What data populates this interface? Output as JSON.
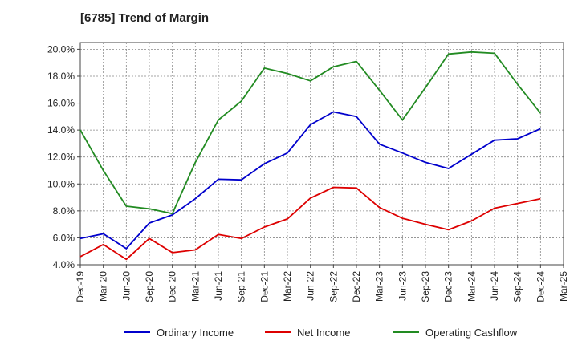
{
  "chart_data": {
    "type": "line",
    "title": "[6785]  Trend of Margin",
    "x": [
      "Dec-19",
      "Mar-20",
      "Jun-20",
      "Sep-20",
      "Dec-20",
      "Mar-21",
      "Jun-21",
      "Sep-21",
      "Dec-21",
      "Mar-22",
      "Jun-22",
      "Sep-22",
      "Dec-22",
      "Mar-23",
      "Jun-23",
      "Sep-23",
      "Dec-23",
      "Mar-24",
      "Jun-24",
      "Sep-24",
      "Dec-24",
      "Mar-25"
    ],
    "ylim": [
      4.0,
      20.5
    ],
    "yticks": [
      4.0,
      6.0,
      8.0,
      10.0,
      12.0,
      14.0,
      16.0,
      18.0,
      20.0
    ],
    "ytick_format": "%",
    "grid": true,
    "legend_position": "bottom",
    "series": [
      {
        "name": "Ordinary Income",
        "color": "#0000cc",
        "values": [
          5.95,
          6.3,
          5.2,
          7.1,
          7.7,
          8.9,
          10.35,
          10.3,
          11.5,
          12.3,
          14.4,
          15.35,
          15.0,
          12.95,
          12.3,
          11.6,
          11.15,
          12.2,
          13.25,
          13.35,
          14.1,
          null
        ]
      },
      {
        "name": "Net Income",
        "color": "#dd0000",
        "values": [
          4.6,
          5.5,
          4.4,
          5.95,
          4.9,
          5.1,
          6.25,
          5.95,
          6.8,
          7.4,
          8.95,
          9.75,
          9.7,
          8.25,
          7.45,
          7.0,
          6.6,
          7.25,
          8.2,
          8.55,
          8.9,
          null
        ]
      },
      {
        "name": "Operating Cashflow",
        "color": "#228b22",
        "values": [
          14.0,
          11.0,
          8.35,
          8.15,
          7.8,
          11.6,
          14.75,
          16.15,
          18.6,
          18.2,
          17.65,
          18.7,
          19.1,
          16.95,
          14.75,
          17.15,
          19.65,
          19.8,
          19.7,
          17.4,
          15.25,
          null
        ]
      }
    ]
  }
}
